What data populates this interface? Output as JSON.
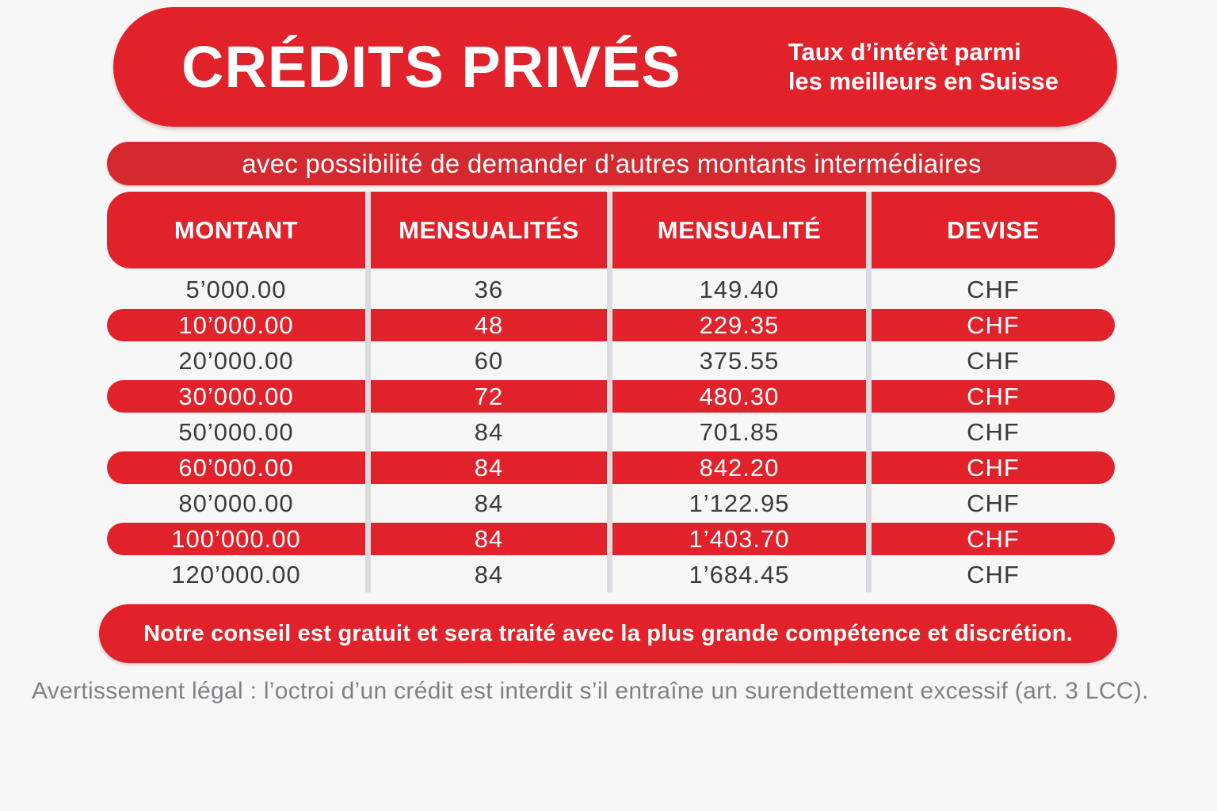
{
  "colors": {
    "primary_red": "#e2222a",
    "sub_red": "#d4292f",
    "row_text": "#3b3b3e",
    "legal_gray": "#808086",
    "separator": "#dbdbdf",
    "page_bg": "#f8f7f7"
  },
  "header": {
    "title": "CRÉDITS PRIVÉS",
    "tagline_line1": "Taux d’intérèt parmi",
    "tagline_line2": "les meilleurs en Suisse"
  },
  "sub_banner": {
    "text": "avec possibilité de demander d’autres montants intermédiaires"
  },
  "table": {
    "columns": [
      "MONTANT",
      "MENSUALITÉS",
      "MENSUALITÉ",
      "DEVISE"
    ],
    "rows": [
      {
        "montant": "5’000.00",
        "mensualites": "36",
        "mensualite": "149.40",
        "devise": "CHF",
        "highlight": false
      },
      {
        "montant": "10’000.00",
        "mensualites": "48",
        "mensualite": "229.35",
        "devise": "CHF",
        "highlight": true
      },
      {
        "montant": "20’000.00",
        "mensualites": "60",
        "mensualite": "375.55",
        "devise": "CHF",
        "highlight": false
      },
      {
        "montant": "30’000.00",
        "mensualites": "72",
        "mensualite": "480.30",
        "devise": "CHF",
        "highlight": true
      },
      {
        "montant": "50’000.00",
        "mensualites": "84",
        "mensualite": "701.85",
        "devise": "CHF",
        "highlight": false
      },
      {
        "montant": "60’000.00",
        "mensualites": "84",
        "mensualite": "842.20",
        "devise": "CHF",
        "highlight": true
      },
      {
        "montant": "80’000.00",
        "mensualites": "84",
        "mensualite": "1’122.95",
        "devise": "CHF",
        "highlight": false
      },
      {
        "montant": "100’000.00",
        "mensualites": "84",
        "mensualite": "1’403.70",
        "devise": "CHF",
        "highlight": true
      },
      {
        "montant": "120’000.00",
        "mensualites": "84",
        "mensualite": "1’684.45",
        "devise": "CHF",
        "highlight": false
      }
    ]
  },
  "footer_banner": {
    "text": "Notre conseil est gratuit et sera traité avec la plus grande compétence et discrétion."
  },
  "legal": {
    "text": "Avertissement légal : l’octroi d’un crédit est interdit s’il entraîne un surendettement excessif (art. 3 LCC)."
  },
  "chart_data": {
    "type": "table",
    "title": "CRÉDITS PRIVÉS",
    "columns": [
      "MONTANT",
      "MENSUALITÉS",
      "MENSUALITÉ",
      "DEVISE"
    ],
    "rows": [
      [
        "5’000.00",
        36,
        149.4,
        "CHF"
      ],
      [
        "10’000.00",
        48,
        229.35,
        "CHF"
      ],
      [
        "20’000.00",
        60,
        375.55,
        "CHF"
      ],
      [
        "30’000.00",
        72,
        480.3,
        "CHF"
      ],
      [
        "50’000.00",
        84,
        701.85,
        "CHF"
      ],
      [
        "60’000.00",
        84,
        842.2,
        "CHF"
      ],
      [
        "80’000.00",
        84,
        1122.95,
        "CHF"
      ],
      [
        "100’000.00",
        84,
        1403.7,
        "CHF"
      ],
      [
        "120’000.00",
        84,
        1684.45,
        "CHF"
      ]
    ]
  }
}
